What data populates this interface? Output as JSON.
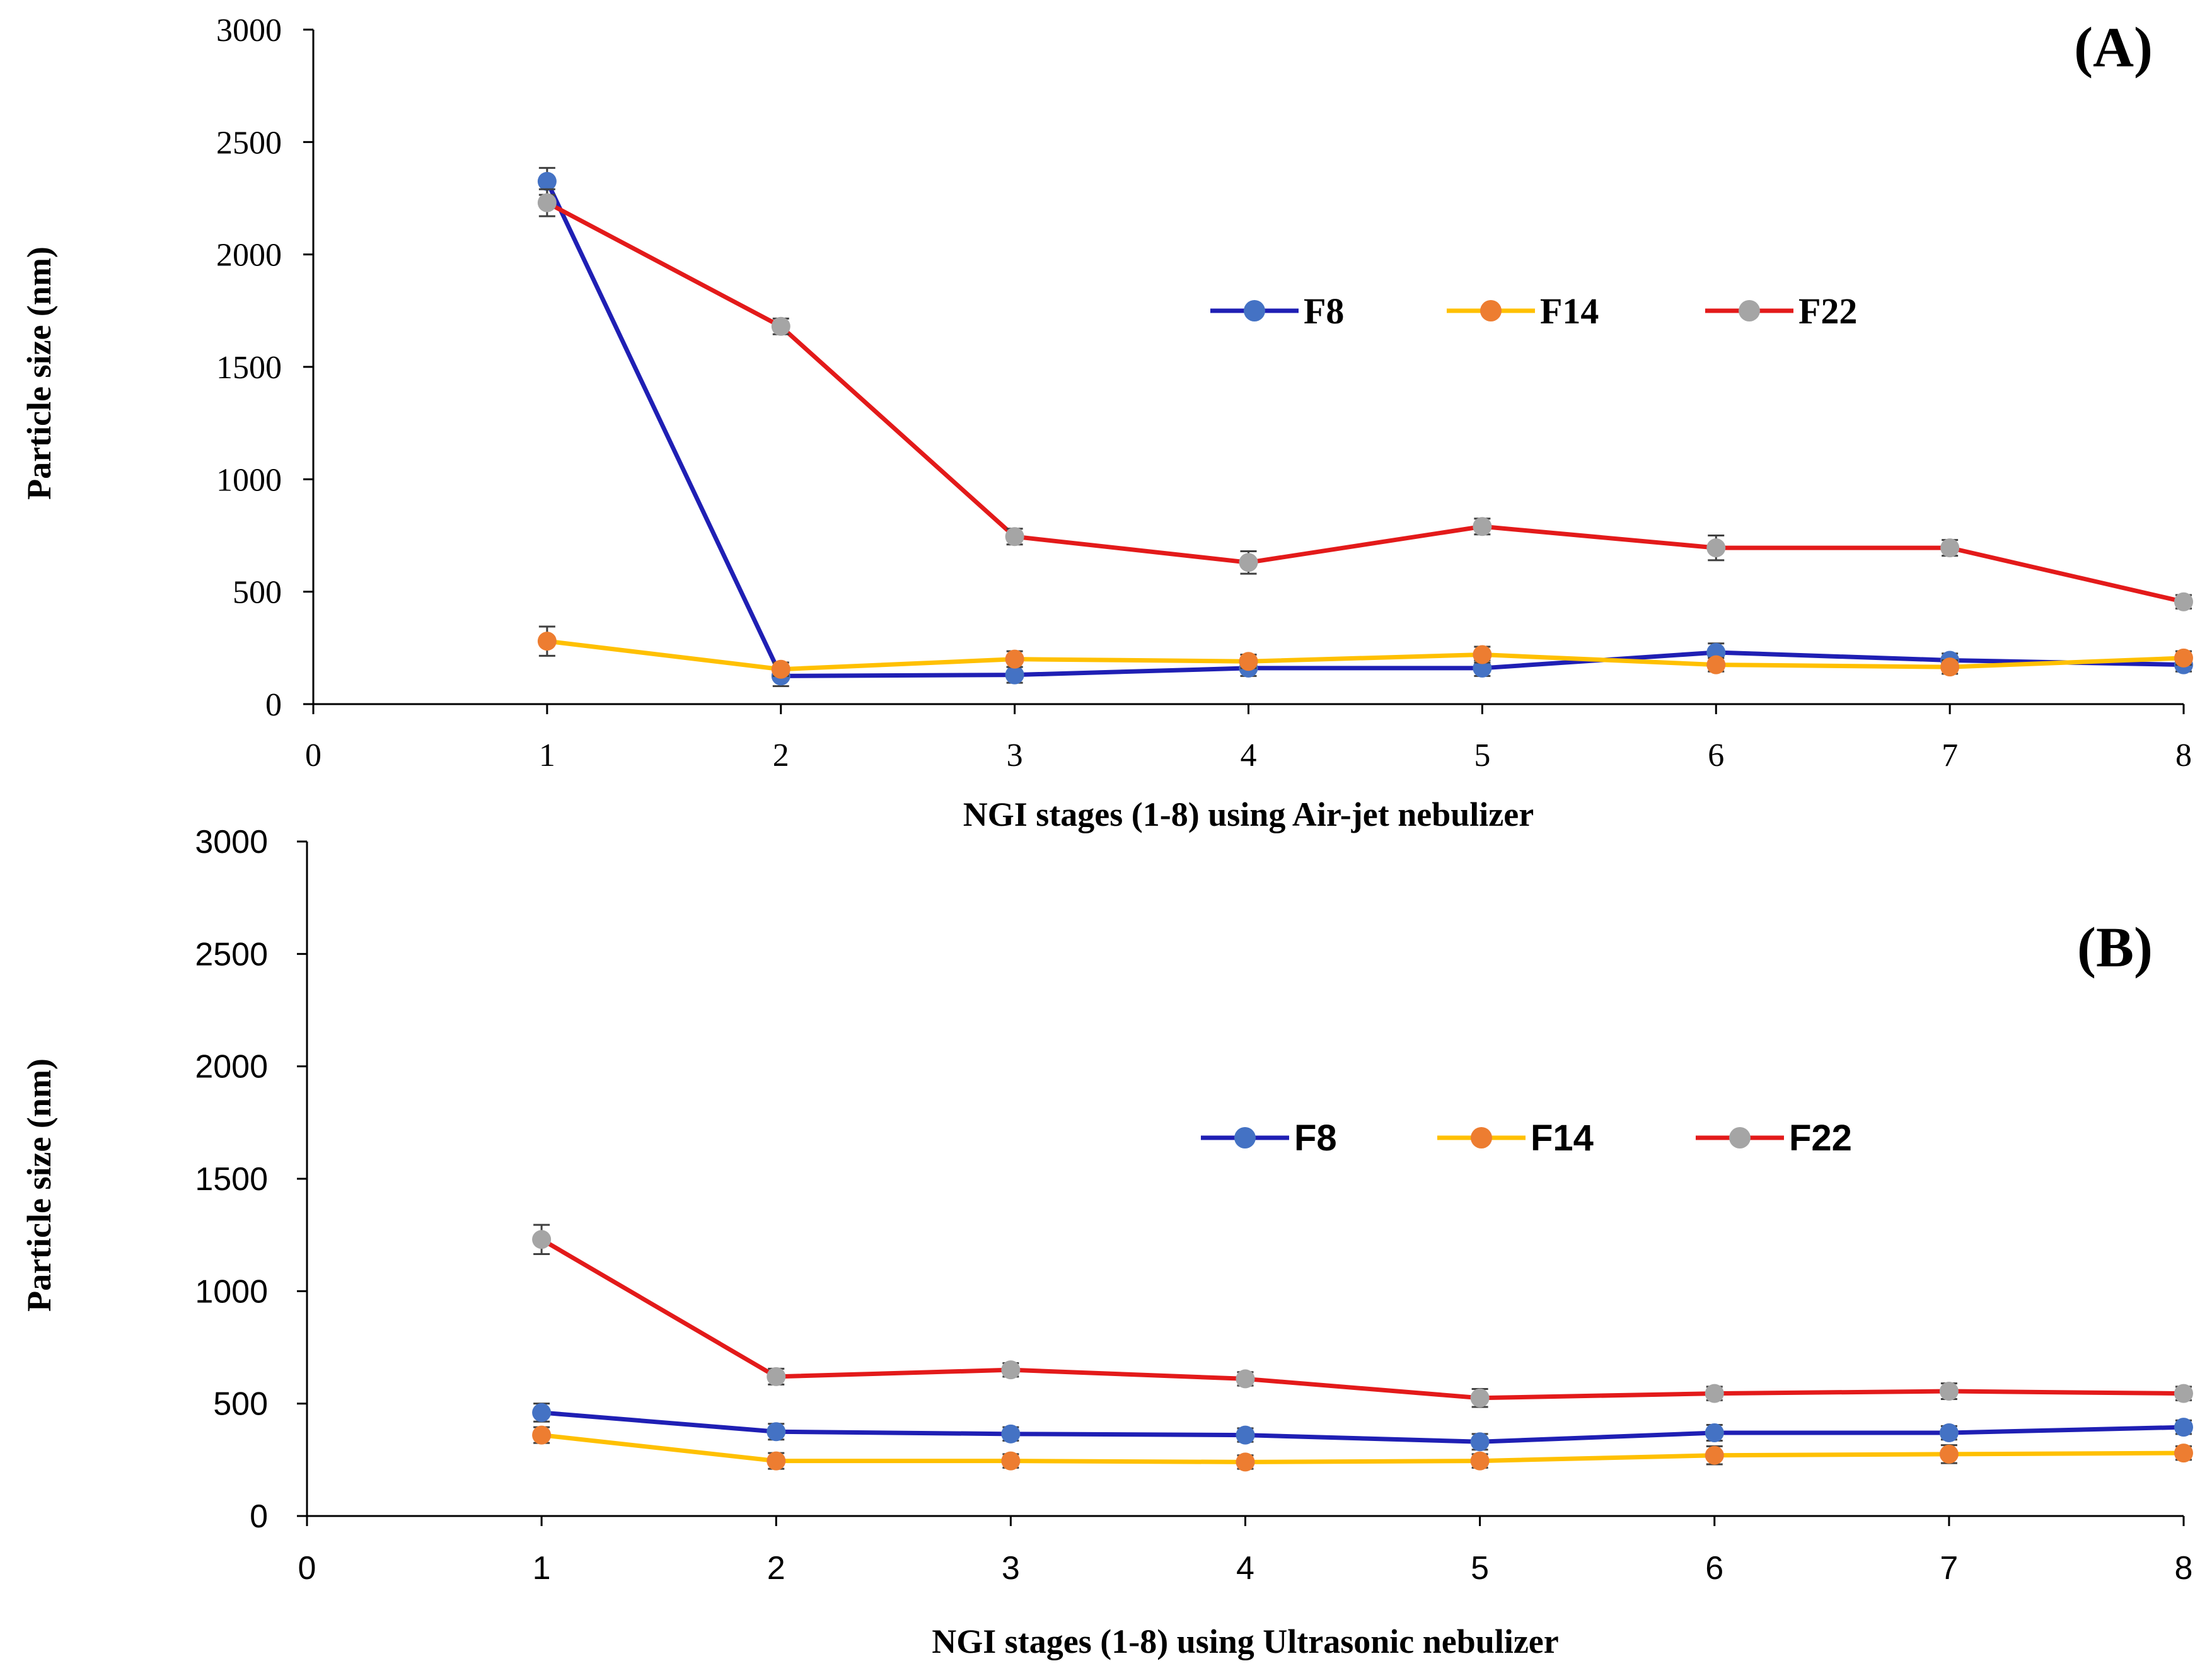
{
  "chart_data": [
    {
      "type": "line",
      "panel_label": "(A)",
      "xlabel": "NGI stages (1-8) using Air-jet nebulizer",
      "ylabel": "Particle size (nm)",
      "xlim": [
        0,
        8
      ],
      "ylim": [
        0,
        3000
      ],
      "xticks": [
        "0",
        "1",
        "2",
        "3",
        "4",
        "5",
        "6",
        "7",
        "8"
      ],
      "yticks": [
        "0",
        "500",
        "1000",
        "1500",
        "2000",
        "2500",
        "3000"
      ],
      "tick_font": "serif",
      "legend_font": "serif",
      "x": [
        1,
        2,
        3,
        4,
        5,
        6,
        7,
        8
      ],
      "series": [
        {
          "name": "F8",
          "line_color": "#1f1fb4",
          "marker_color": "#4472c4",
          "values": [
            2325,
            125,
            130,
            160,
            160,
            230,
            195,
            175
          ],
          "errors": [
            60,
            45,
            35,
            35,
            35,
            40,
            30,
            30
          ]
        },
        {
          "name": "F14",
          "line_color": "#ffc000",
          "marker_color": "#ed7d31",
          "values": [
            280,
            155,
            200,
            190,
            220,
            175,
            165,
            205
          ],
          "errors": [
            65,
            30,
            35,
            30,
            35,
            30,
            30,
            30
          ]
        },
        {
          "name": "F22",
          "line_color": "#e31a1a",
          "marker_color": "#a5a5a5",
          "values": [
            2230,
            1680,
            745,
            630,
            790,
            695,
            695,
            455
          ],
          "errors": [
            60,
            35,
            35,
            50,
            35,
            55,
            35,
            30
          ]
        }
      ]
    },
    {
      "type": "line",
      "panel_label": "(B)",
      "xlabel": "NGI stages (1-8) using Ultrasonic nebulizer",
      "ylabel": "Particle size (nm)",
      "xlim": [
        0,
        8
      ],
      "ylim": [
        0,
        3000
      ],
      "xticks": [
        "0",
        "1",
        "2",
        "3",
        "4",
        "5",
        "6",
        "7",
        "8"
      ],
      "yticks": [
        "0",
        "500",
        "1000",
        "1500",
        "2000",
        "2500",
        "3000"
      ],
      "tick_font": "sans",
      "legend_font": "sans",
      "x": [
        1,
        2,
        3,
        4,
        5,
        6,
        7,
        8
      ],
      "series": [
        {
          "name": "F8",
          "line_color": "#1f1fb4",
          "marker_color": "#4472c4",
          "values": [
            460,
            375,
            365,
            360,
            330,
            370,
            370,
            395
          ],
          "errors": [
            40,
            35,
            30,
            30,
            35,
            35,
            30,
            30
          ]
        },
        {
          "name": "F14",
          "line_color": "#ffc000",
          "marker_color": "#ed7d31",
          "values": [
            360,
            245,
            245,
            240,
            245,
            270,
            275,
            280
          ],
          "errors": [
            35,
            35,
            30,
            30,
            30,
            40,
            40,
            30
          ]
        },
        {
          "name": "F22",
          "line_color": "#e31a1a",
          "marker_color": "#a5a5a5",
          "values": [
            1230,
            620,
            650,
            610,
            525,
            545,
            555,
            545
          ],
          "errors": [
            65,
            35,
            30,
            30,
            40,
            30,
            35,
            30
          ]
        }
      ]
    }
  ]
}
